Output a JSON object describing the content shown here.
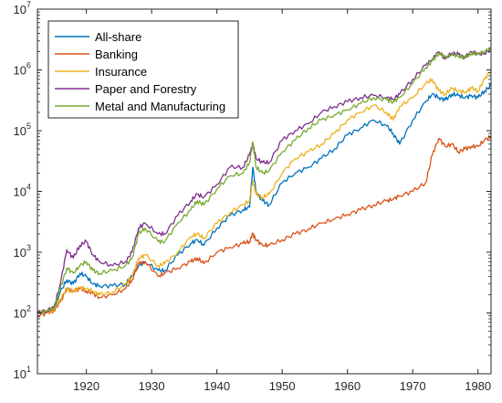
{
  "chart_data": {
    "type": "line",
    "title": "",
    "xlabel": "",
    "ylabel": "",
    "yscale": "log",
    "xlim": [
      1912.5,
      1982
    ],
    "ylim": [
      10,
      10000000
    ],
    "x_ticks": [
      1920,
      1930,
      1940,
      1950,
      1960,
      1970,
      1980
    ],
    "x_tick_labels": [
      "1920",
      "1930",
      "1940",
      "1950",
      "1960",
      "1970",
      "1980"
    ],
    "y_ticks": [
      10,
      100,
      1000,
      10000,
      100000,
      1000000,
      10000000
    ],
    "y_tick_labels": [
      {
        "base": "10",
        "exp": "1"
      },
      {
        "base": "10",
        "exp": "2"
      },
      {
        "base": "10",
        "exp": "3"
      },
      {
        "base": "10",
        "exp": "4"
      },
      {
        "base": "10",
        "exp": "5"
      },
      {
        "base": "10",
        "exp": "6"
      },
      {
        "base": "10",
        "exp": "7"
      }
    ],
    "grid": false,
    "legend_position": "top-left",
    "x": [
      1912.5,
      1914,
      1915,
      1916,
      1917,
      1918,
      1919,
      1920,
      1921,
      1922,
      1924,
      1926,
      1927,
      1928,
      1929,
      1931,
      1932,
      1934,
      1936,
      1937,
      1938,
      1940,
      1942,
      1944,
      1945,
      1945.5,
      1946,
      1947,
      1948,
      1950,
      1952,
      1954,
      1956,
      1958,
      1960,
      1962,
      1964,
      1966,
      1967,
      1968,
      1970,
      1972,
      1973,
      1974,
      1975,
      1976,
      1977,
      1978,
      1979,
      1980,
      1981,
      1982
    ],
    "series": [
      {
        "name": "All-share",
        "color": "#0072BD",
        "values": [
          100,
          110,
          115,
          220,
          350,
          300,
          450,
          400,
          300,
          280,
          280,
          300,
          400,
          600,
          700,
          500,
          500,
          900,
          1400,
          1600,
          1300,
          2500,
          4000,
          5000,
          5500,
          25000,
          10000,
          7000,
          6000,
          14000,
          20000,
          25000,
          35000,
          50000,
          85000,
          110000,
          150000,
          120000,
          90000,
          60000,
          150000,
          300000,
          400000,
          350000,
          320000,
          400000,
          380000,
          350000,
          380000,
          350000,
          450000,
          550000
        ]
      },
      {
        "name": "Banking",
        "color": "#D95319",
        "values": [
          90,
          100,
          110,
          150,
          250,
          230,
          250,
          230,
          210,
          180,
          200,
          250,
          350,
          650,
          700,
          400,
          450,
          550,
          700,
          800,
          650,
          1000,
          1200,
          1400,
          1500,
          2000,
          1600,
          1300,
          1300,
          1600,
          2000,
          2400,
          3000,
          3500,
          4200,
          5000,
          6000,
          7000,
          7500,
          8500,
          10000,
          14000,
          40000,
          75000,
          55000,
          60000,
          45000,
          50000,
          55000,
          55000,
          70000,
          80000
        ]
      },
      {
        "name": "Insurance",
        "color": "#EDB120",
        "values": [
          100,
          105,
          110,
          170,
          250,
          230,
          260,
          250,
          230,
          200,
          220,
          300,
          400,
          800,
          900,
          600,
          650,
          1000,
          1800,
          2000,
          1700,
          3000,
          4500,
          6000,
          7000,
          15000,
          9000,
          8000,
          9000,
          20000,
          35000,
          45000,
          60000,
          90000,
          150000,
          200000,
          260000,
          200000,
          150000,
          250000,
          350000,
          600000,
          700000,
          450000,
          400000,
          500000,
          450000,
          430000,
          500000,
          450000,
          700000,
          1000000
        ]
      },
      {
        "name": "Paper and Forestry",
        "color": "#7E2F8E",
        "values": [
          100,
          110,
          120,
          300,
          1100,
          800,
          1300,
          1500,
          900,
          700,
          600,
          700,
          1000,
          2500,
          3000,
          2000,
          2000,
          4000,
          7000,
          9000,
          8000,
          13000,
          25000,
          25000,
          40000,
          60000,
          35000,
          30000,
          30000,
          70000,
          100000,
          130000,
          200000,
          250000,
          300000,
          350000,
          380000,
          350000,
          330000,
          400000,
          700000,
          1200000,
          1500000,
          2000000,
          1500000,
          1900000,
          1800000,
          1600000,
          2000000,
          1800000,
          1900000,
          2200000
        ]
      },
      {
        "name": "Metal and Manufacturing",
        "color": "#77AC30",
        "values": [
          100,
          108,
          120,
          250,
          550,
          450,
          600,
          700,
          500,
          450,
          500,
          600,
          800,
          2000,
          2500,
          1500,
          1500,
          3000,
          5000,
          7000,
          6000,
          11000,
          18000,
          20000,
          30000,
          65000,
          25000,
          20000,
          22000,
          45000,
          70000,
          110000,
          150000,
          180000,
          220000,
          280000,
          350000,
          320000,
          300000,
          350000,
          600000,
          1100000,
          1400000,
          1900000,
          1600000,
          1800000,
          1700000,
          1600000,
          1900000,
          1800000,
          2000000,
          2300000
        ]
      }
    ]
  }
}
